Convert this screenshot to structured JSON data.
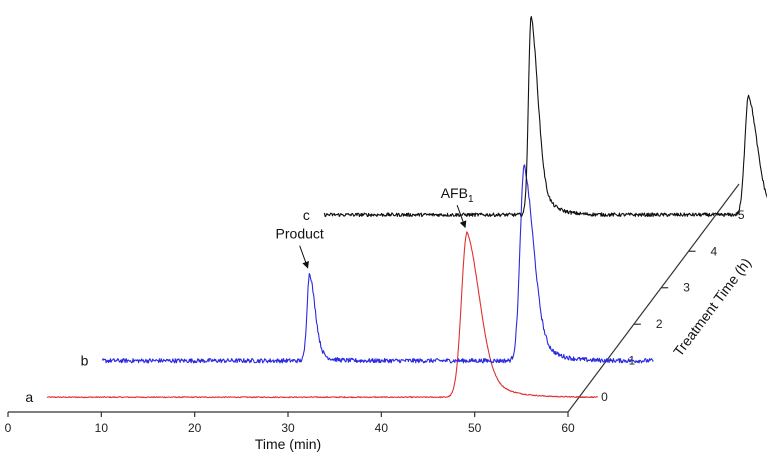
{
  "chart_data": {
    "type": "line",
    "style": "3d-stacked-chromatograms",
    "xlabel": "Time (min)",
    "zlabel": "Treatment Time (h)",
    "xlim": [
      0,
      60
    ],
    "zlim": [
      0,
      5
    ],
    "x_ticks": [
      0,
      10,
      20,
      30,
      40,
      50,
      60
    ],
    "z_ticks": [
      0,
      1,
      2,
      3,
      4,
      5
    ],
    "grid": false,
    "colors": {
      "a": "#e03030",
      "b": "#2a2ae0",
      "c": "#111111",
      "axis": "#333333"
    },
    "series": [
      {
        "name": "a",
        "color": "#e03030",
        "treatment_time": 0,
        "x_range": [
          3,
          62
        ],
        "baseline": 0,
        "peaks": [
          {
            "x": 48,
            "height": 165,
            "sigma": 0.6,
            "tail": 2.2
          }
        ],
        "noise": 0.5
      },
      {
        "name": "b",
        "color": "#2a2ae0",
        "treatment_time": 1,
        "x_range": [
          6,
          65
        ],
        "baseline": 0,
        "peaks": [
          {
            "x": 28.2,
            "height": 88,
            "sigma": 0.28,
            "tail": 0.9
          },
          {
            "x": 51.2,
            "height": 195,
            "sigma": 0.45,
            "tail": 1.6
          }
        ],
        "noise": 2.2
      },
      {
        "name": "c",
        "color": "#111111",
        "treatment_time": 5,
        "x_range": [
          18,
          77
        ],
        "baseline": 0,
        "peaks": [
          {
            "x": 40.2,
            "height": 200,
            "sigma": 0.28,
            "tail": 1.3
          },
          {
            "x": 63.5,
            "height": 120,
            "sigma": 0.4,
            "tail": 1.5
          }
        ],
        "noise": 1.8
      }
    ],
    "annotations": [
      {
        "text": "Product",
        "series": "b",
        "x": 28.2
      },
      {
        "text": "AFB",
        "subscript": "1",
        "series": "a",
        "x": 48
      }
    ]
  }
}
